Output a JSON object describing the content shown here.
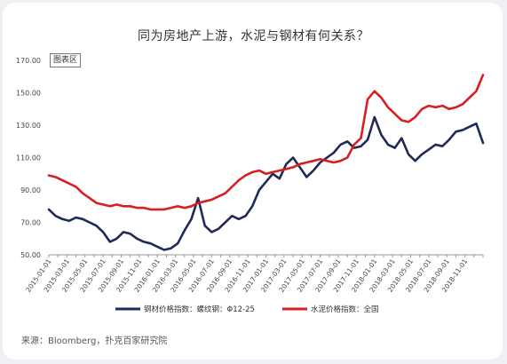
{
  "title": "同为房地产上游，水泥与钢材有何关系？",
  "plot_tag": "图表区",
  "source": "来源：Bloomberg，扑克百家研究院",
  "chart_data": {
    "type": "line",
    "title": "同为房地产上游，水泥与钢材有何关系？",
    "xlabel": "",
    "ylabel": "",
    "ylim": [
      50,
      170
    ],
    "yticks": [
      50,
      70,
      90,
      110,
      130,
      150,
      170
    ],
    "ytick_labels": [
      "50.00",
      "70.00",
      "90.00",
      "110.00",
      "130.00",
      "150.00",
      "170.00"
    ],
    "x_start": "2015-01",
    "x_end": "2018-12",
    "xtick_labels": [
      "2015-01-01",
      "2015-03-01",
      "2015-05-01",
      "2015-07-01",
      "2015-09-01",
      "2015-11-01",
      "2016-01-01",
      "2016-03-01",
      "2016-05-01",
      "2016-07-01",
      "2016-09-01",
      "2016-11-01",
      "2017-01-01",
      "2017-03-01",
      "2017-05-01",
      "2017-07-01",
      "2017-09-01",
      "2017-11-01",
      "2018-01-01",
      "2018-03-01",
      "2018-05-01",
      "2018-07-01",
      "2018-09-01",
      "2018-11-01"
    ],
    "grid": false,
    "legend_position": "bottom",
    "series": [
      {
        "name": "钢材价格指数：螺纹钢：Φ12-25",
        "color": "#1f2a5a",
        "values": [
          78,
          74,
          72,
          71,
          73,
          72,
          70,
          68,
          64,
          58,
          60,
          64,
          63,
          60,
          58,
          57,
          55,
          53,
          54,
          57,
          65,
          72,
          85,
          68,
          64,
          66,
          70,
          74,
          72,
          74,
          80,
          90,
          95,
          100,
          97,
          106,
          110,
          104,
          98,
          102,
          107,
          110,
          113,
          118,
          120,
          116,
          117,
          121,
          135,
          124,
          118,
          116,
          122,
          112,
          108,
          112,
          115,
          118,
          117,
          121,
          126,
          127,
          129,
          131,
          119
        ]
      },
      {
        "name": "水泥价格指数：全国",
        "color": "#d62020",
        "values": [
          99,
          98,
          96,
          94,
          92,
          88,
          85,
          82,
          81,
          80,
          81,
          80,
          80,
          79,
          79,
          78,
          78,
          78,
          79,
          80,
          79,
          80,
          82,
          83,
          84,
          86,
          88,
          92,
          96,
          99,
          101,
          102,
          100,
          101,
          102,
          103,
          104,
          106,
          107,
          108,
          109,
          108,
          107,
          108,
          110,
          118,
          122,
          146,
          151,
          147,
          141,
          137,
          133,
          132,
          135,
          140,
          142,
          141,
          142,
          140,
          141,
          143,
          147,
          151,
          161
        ]
      }
    ]
  }
}
